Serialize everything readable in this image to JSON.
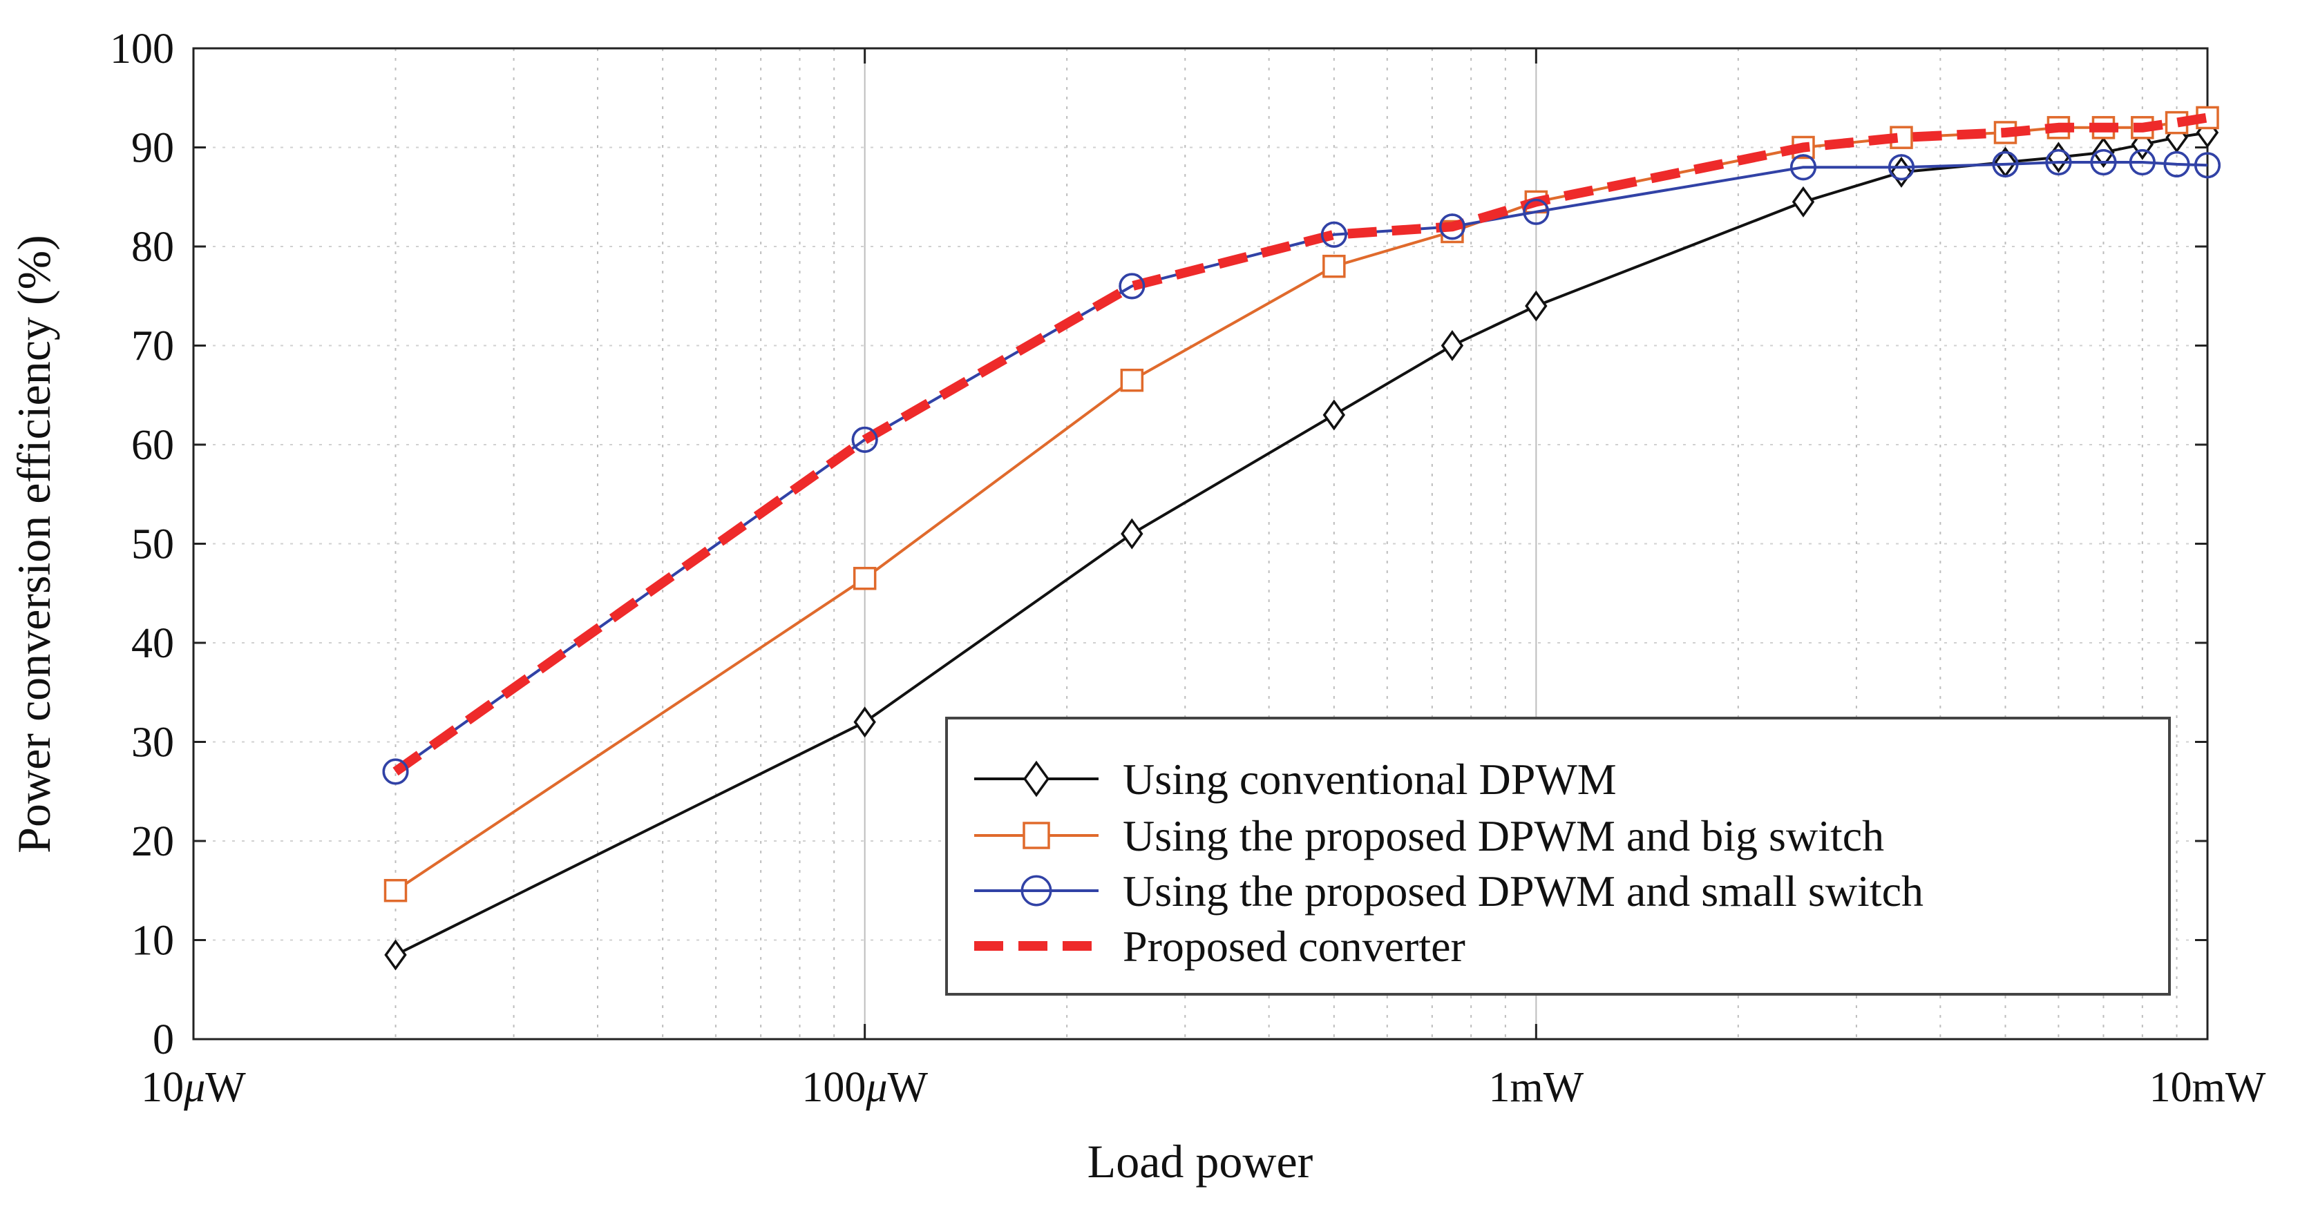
{
  "chart_data": {
    "type": "line",
    "title": "",
    "xlabel": "Load power",
    "ylabel": "Power conversion efficiency (%)",
    "xscale": "log",
    "xlim": [
      1e-05,
      0.01
    ],
    "ylim": [
      0,
      100
    ],
    "grid": true,
    "legend_position": "bottom-right",
    "x_ticks": [
      {
        "value": 1e-05,
        "prefix": "10",
        "mu": "μ",
        "unit": "W"
      },
      {
        "value": 0.0001,
        "prefix": "100",
        "mu": "μ",
        "unit": "W"
      },
      {
        "value": 0.001,
        "prefix": "1mW",
        "mu": "",
        "unit": ""
      },
      {
        "value": 0.01,
        "prefix": "10mW",
        "mu": "",
        "unit": ""
      }
    ],
    "y_ticks": [
      0,
      10,
      20,
      30,
      40,
      50,
      60,
      70,
      80,
      90,
      100
    ],
    "series": [
      {
        "name": "Using conventional DPWM",
        "color": "#111111",
        "marker": "diamond",
        "dashed": false,
        "x": [
          2e-05,
          0.0001,
          0.00025,
          0.0005,
          0.00075,
          0.001,
          0.0025,
          0.0035,
          0.005,
          0.006,
          0.007,
          0.008,
          0.009,
          0.01
        ],
        "y": [
          8.5,
          32,
          51,
          63,
          70,
          74,
          84.5,
          87.5,
          88.5,
          89,
          89.5,
          90.3,
          91,
          91.5
        ]
      },
      {
        "name": "Using the proposed DPWM and big switch",
        "color": "#e06a2c",
        "marker": "square",
        "dashed": false,
        "x": [
          2e-05,
          0.0001,
          0.00025,
          0.0005,
          0.00075,
          0.001,
          0.0025,
          0.0035,
          0.005,
          0.006,
          0.007,
          0.008,
          0.009,
          0.01
        ],
        "y": [
          15,
          46.5,
          66.5,
          78,
          81.5,
          84.5,
          90,
          91,
          91.5,
          92,
          92,
          92,
          92.5,
          93
        ]
      },
      {
        "name": "Using the proposed DPWM and small switch",
        "color": "#3142a6",
        "marker": "circle",
        "dashed": false,
        "x": [
          2e-05,
          0.0001,
          0.00025,
          0.0005,
          0.00075,
          0.001,
          0.0025,
          0.0035,
          0.005,
          0.006,
          0.007,
          0.008,
          0.009,
          0.01
        ],
        "y": [
          27,
          60.5,
          76,
          81.2,
          82,
          83.5,
          88,
          88,
          88.3,
          88.5,
          88.5,
          88.5,
          88.3,
          88.2
        ]
      },
      {
        "name": "Proposed converter",
        "color": "#ee2a2a",
        "marker": "none",
        "dashed": true,
        "x": [
          2e-05,
          0.0001,
          0.00025,
          0.0005,
          0.00075,
          0.001,
          0.0025,
          0.0035,
          0.005,
          0.006,
          0.007,
          0.008,
          0.009,
          0.01
        ],
        "y": [
          27,
          60.5,
          76,
          81.2,
          82,
          84.5,
          90,
          91,
          91.5,
          92,
          92,
          92,
          92.5,
          93
        ]
      }
    ]
  }
}
